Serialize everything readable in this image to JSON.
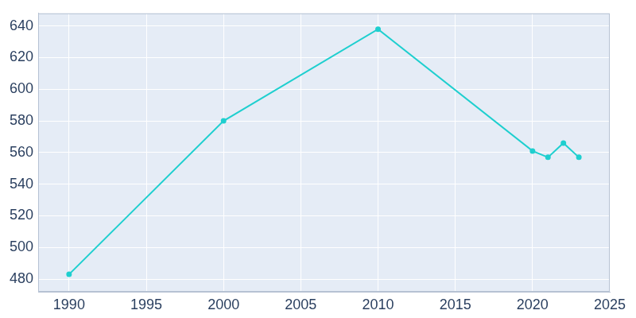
{
  "chart_data": {
    "type": "line",
    "x": [
      1990,
      2000,
      2010,
      2020,
      2021,
      2022,
      2023
    ],
    "values": [
      483,
      580,
      638,
      561,
      557,
      566,
      557
    ],
    "color": "#1fcfcf",
    "marker": "circle",
    "xlim": [
      1988,
      2025
    ],
    "xticks": [
      1990,
      1995,
      2000,
      2005,
      2010,
      2015,
      2020,
      2025
    ],
    "ylim": [
      472,
      648
    ],
    "yticks": [
      480,
      500,
      520,
      540,
      560,
      580,
      600,
      620,
      640
    ],
    "grid": true
  }
}
